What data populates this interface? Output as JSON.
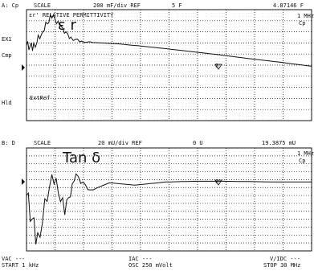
{
  "top": {
    "header_param": "A: Cp",
    "header_scale_label": "SCALE",
    "header_scale_value": "200 mF/div REF",
    "header_ref_value": "5 F",
    "header_marker_value": "4.87146 F",
    "title": "εr' RELATIVE PERMITTIVITY",
    "big_label": "ε r",
    "marker_freq": "1 MHz",
    "marker_param": "Cp",
    "left_labels": [
      "EX1",
      "Cmp",
      "Hld"
    ],
    "ext_ref": "ExtRef",
    "marker_number": "0"
  },
  "bottom": {
    "header_param": "B: D",
    "header_scale_label": "SCALE",
    "header_scale_value": "20 mU/div REF",
    "header_ref_value": "0 U",
    "header_marker_value": "19.3875 mU",
    "big_label": "Tan δ",
    "marker_freq": "1 MHz",
    "marker_param": "Cp",
    "marker_number": "0"
  },
  "footer": {
    "vac": "VAC ---",
    "start": "START 1 kHz",
    "iac": "IAC ---",
    "osc": "OSC 250 mVolt",
    "vidc": "V/IDC ---",
    "stop": "STOP 30 MHz"
  },
  "chart_data": [
    {
      "type": "line",
      "title": "εr' RELATIVE PERMITTIVITY",
      "x_scale": "log",
      "xlim_hz": [
        1000,
        30000000
      ],
      "x_hz": [
        1000,
        1300,
        1800,
        2500,
        3500,
        5000,
        8000,
        15000,
        30000,
        100000,
        300000,
        1000000,
        3000000,
        10000000,
        30000000
      ],
      "y_div": [
        2.8,
        2.6,
        4.1,
        5.5,
        4.4,
        3.4,
        3.1,
        3.0,
        2.9,
        2.6,
        2.3,
        1.95,
        1.6,
        1.25,
        0.9
      ],
      "ylim_div": [
        -4,
        6
      ],
      "grid": true
    },
    {
      "type": "line",
      "title": "Tan δ",
      "x_scale": "log",
      "xlim_hz": [
        1000,
        30000000
      ],
      "x_hz": [
        1000,
        1500,
        2500,
        4000,
        6000,
        10000,
        20000,
        50000,
        150000,
        500000,
        1000000,
        3000000,
        10000000,
        30000000
      ],
      "y_div": [
        -2.0,
        -8.0,
        0.9,
        -3.8,
        0.5,
        -1.4,
        -0.4,
        -0.7,
        -0.3,
        -0.2,
        -0.2,
        -0.25,
        -0.3,
        -0.3
      ],
      "ylim_div": [
        -9,
        4
      ],
      "grid": true
    }
  ]
}
